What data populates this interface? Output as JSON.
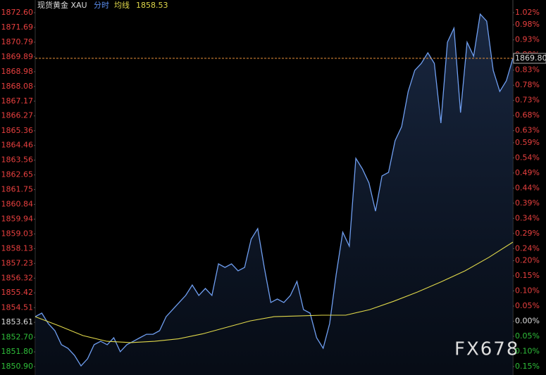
{
  "chart_data": {
    "type": "line",
    "header": {
      "symbol": "现货黄金 XAU",
      "mode": "分时",
      "avg_label": "均线",
      "avg_value": "1858.53"
    },
    "watermark": "FX678",
    "ylim": [
      1850.9,
      1872.6
    ],
    "y2lim": [
      -0.15,
      1.02
    ],
    "yticks": [
      {
        "value": 1872.6,
        "label": "1872.60"
      },
      {
        "value": 1871.69,
        "label": "1871.69"
      },
      {
        "value": 1870.79,
        "label": "1870.79"
      },
      {
        "value": 1869.89,
        "label": "1869.89"
      },
      {
        "value": 1868.98,
        "label": "1868.98"
      },
      {
        "value": 1868.08,
        "label": "1868.08"
      },
      {
        "value": 1867.17,
        "label": "1867.17"
      },
      {
        "value": 1866.27,
        "label": "1866.27"
      },
      {
        "value": 1865.36,
        "label": "1865.36"
      },
      {
        "value": 1864.46,
        "label": "1864.46"
      },
      {
        "value": 1863.56,
        "label": "1863.56"
      },
      {
        "value": 1862.65,
        "label": "1862.65"
      },
      {
        "value": 1861.75,
        "label": "1861.75"
      },
      {
        "value": 1860.84,
        "label": "1860.84"
      },
      {
        "value": 1859.94,
        "label": "1859.94"
      },
      {
        "value": 1859.03,
        "label": "1859.03"
      },
      {
        "value": 1858.13,
        "label": "1858.13"
      },
      {
        "value": 1857.23,
        "label": "1857.23"
      },
      {
        "value": 1856.32,
        "label": "1856.32"
      },
      {
        "value": 1855.42,
        "label": "1855.42"
      },
      {
        "value": 1854.51,
        "label": "1854.51"
      },
      {
        "value": 1853.61,
        "label": "1853.61"
      },
      {
        "value": 1852.7,
        "label": "1852.70"
      },
      {
        "value": 1851.8,
        "label": "1851.80"
      },
      {
        "value": 1850.9,
        "label": "1850.90"
      }
    ],
    "y2ticks": [
      {
        "value": 1.02,
        "label": "1.02%"
      },
      {
        "value": 0.98,
        "label": "0.98%"
      },
      {
        "value": 0.93,
        "label": "0.93%"
      },
      {
        "value": 0.88,
        "label": "0.88%"
      },
      {
        "value": 0.83,
        "label": "0.83%"
      },
      {
        "value": 0.78,
        "label": "0.78%"
      },
      {
        "value": 0.73,
        "label": "0.73%"
      },
      {
        "value": 0.68,
        "label": "0.68%"
      },
      {
        "value": 0.63,
        "label": "0.63%"
      },
      {
        "value": 0.59,
        "label": "0.59%"
      },
      {
        "value": 0.54,
        "label": "0.54%"
      },
      {
        "value": 0.49,
        "label": "0.49%"
      },
      {
        "value": 0.44,
        "label": "0.44%"
      },
      {
        "value": 0.39,
        "label": "0.39%"
      },
      {
        "value": 0.34,
        "label": "0.34%"
      },
      {
        "value": 0.29,
        "label": "0.29%"
      },
      {
        "value": 0.24,
        "label": "0.24%"
      },
      {
        "value": 0.2,
        "label": "0.20%"
      },
      {
        "value": 0.15,
        "label": "0.15%"
      },
      {
        "value": 0.1,
        "label": "0.10%"
      },
      {
        "value": 0.05,
        "label": "0.05%"
      },
      {
        "value": 0,
        "label": "0.00%"
      },
      {
        "value": -0.05,
        "label": "0.05%"
      },
      {
        "value": -0.1,
        "label": "0.10%"
      },
      {
        "value": -0.15,
        "label": "0.15%"
      }
    ],
    "last_price": {
      "value": 1869.8,
      "label": "1869.80"
    },
    "series": [
      {
        "name": "分时",
        "color": "#6f9ef0",
        "values": [
          1853.96,
          1854.18,
          1853.53,
          1853.1,
          1852.24,
          1852.02,
          1851.59,
          1850.94,
          1851.38,
          1852.24,
          1852.45,
          1852.24,
          1852.67,
          1851.81,
          1852.24,
          1852.45,
          1852.67,
          1852.88,
          1852.88,
          1853.1,
          1853.96,
          1854.39,
          1854.83,
          1855.26,
          1855.9,
          1855.26,
          1855.69,
          1855.26,
          1857.2,
          1856.98,
          1857.2,
          1856.77,
          1856.98,
          1858.71,
          1859.36,
          1856.98,
          1854.83,
          1855.04,
          1854.83,
          1855.26,
          1856.12,
          1854.39,
          1854.18,
          1852.67,
          1852.02,
          1853.53,
          1856.55,
          1859.14,
          1858.28,
          1863.67,
          1863.02,
          1862.16,
          1860.43,
          1862.59,
          1862.81,
          1864.75,
          1865.61,
          1867.77,
          1869.06,
          1869.49,
          1870.14,
          1869.49,
          1865.83,
          1870.79,
          1871.65,
          1866.47,
          1870.79,
          1869.93,
          1872.51,
          1872.08,
          1869.06,
          1867.77,
          1868.42,
          1869.8
        ]
      },
      {
        "name": "均线",
        "color": "#e0d84a",
        "values": [
          1853.96,
          1853.4,
          1852.8,
          1852.45,
          1852.37,
          1852.45,
          1852.6,
          1852.9,
          1853.3,
          1853.7,
          1853.96,
          1854.0,
          1854.05,
          1854.05,
          1854.39,
          1854.9,
          1855.47,
          1856.1,
          1856.77,
          1857.6,
          1858.53
        ]
      }
    ]
  }
}
